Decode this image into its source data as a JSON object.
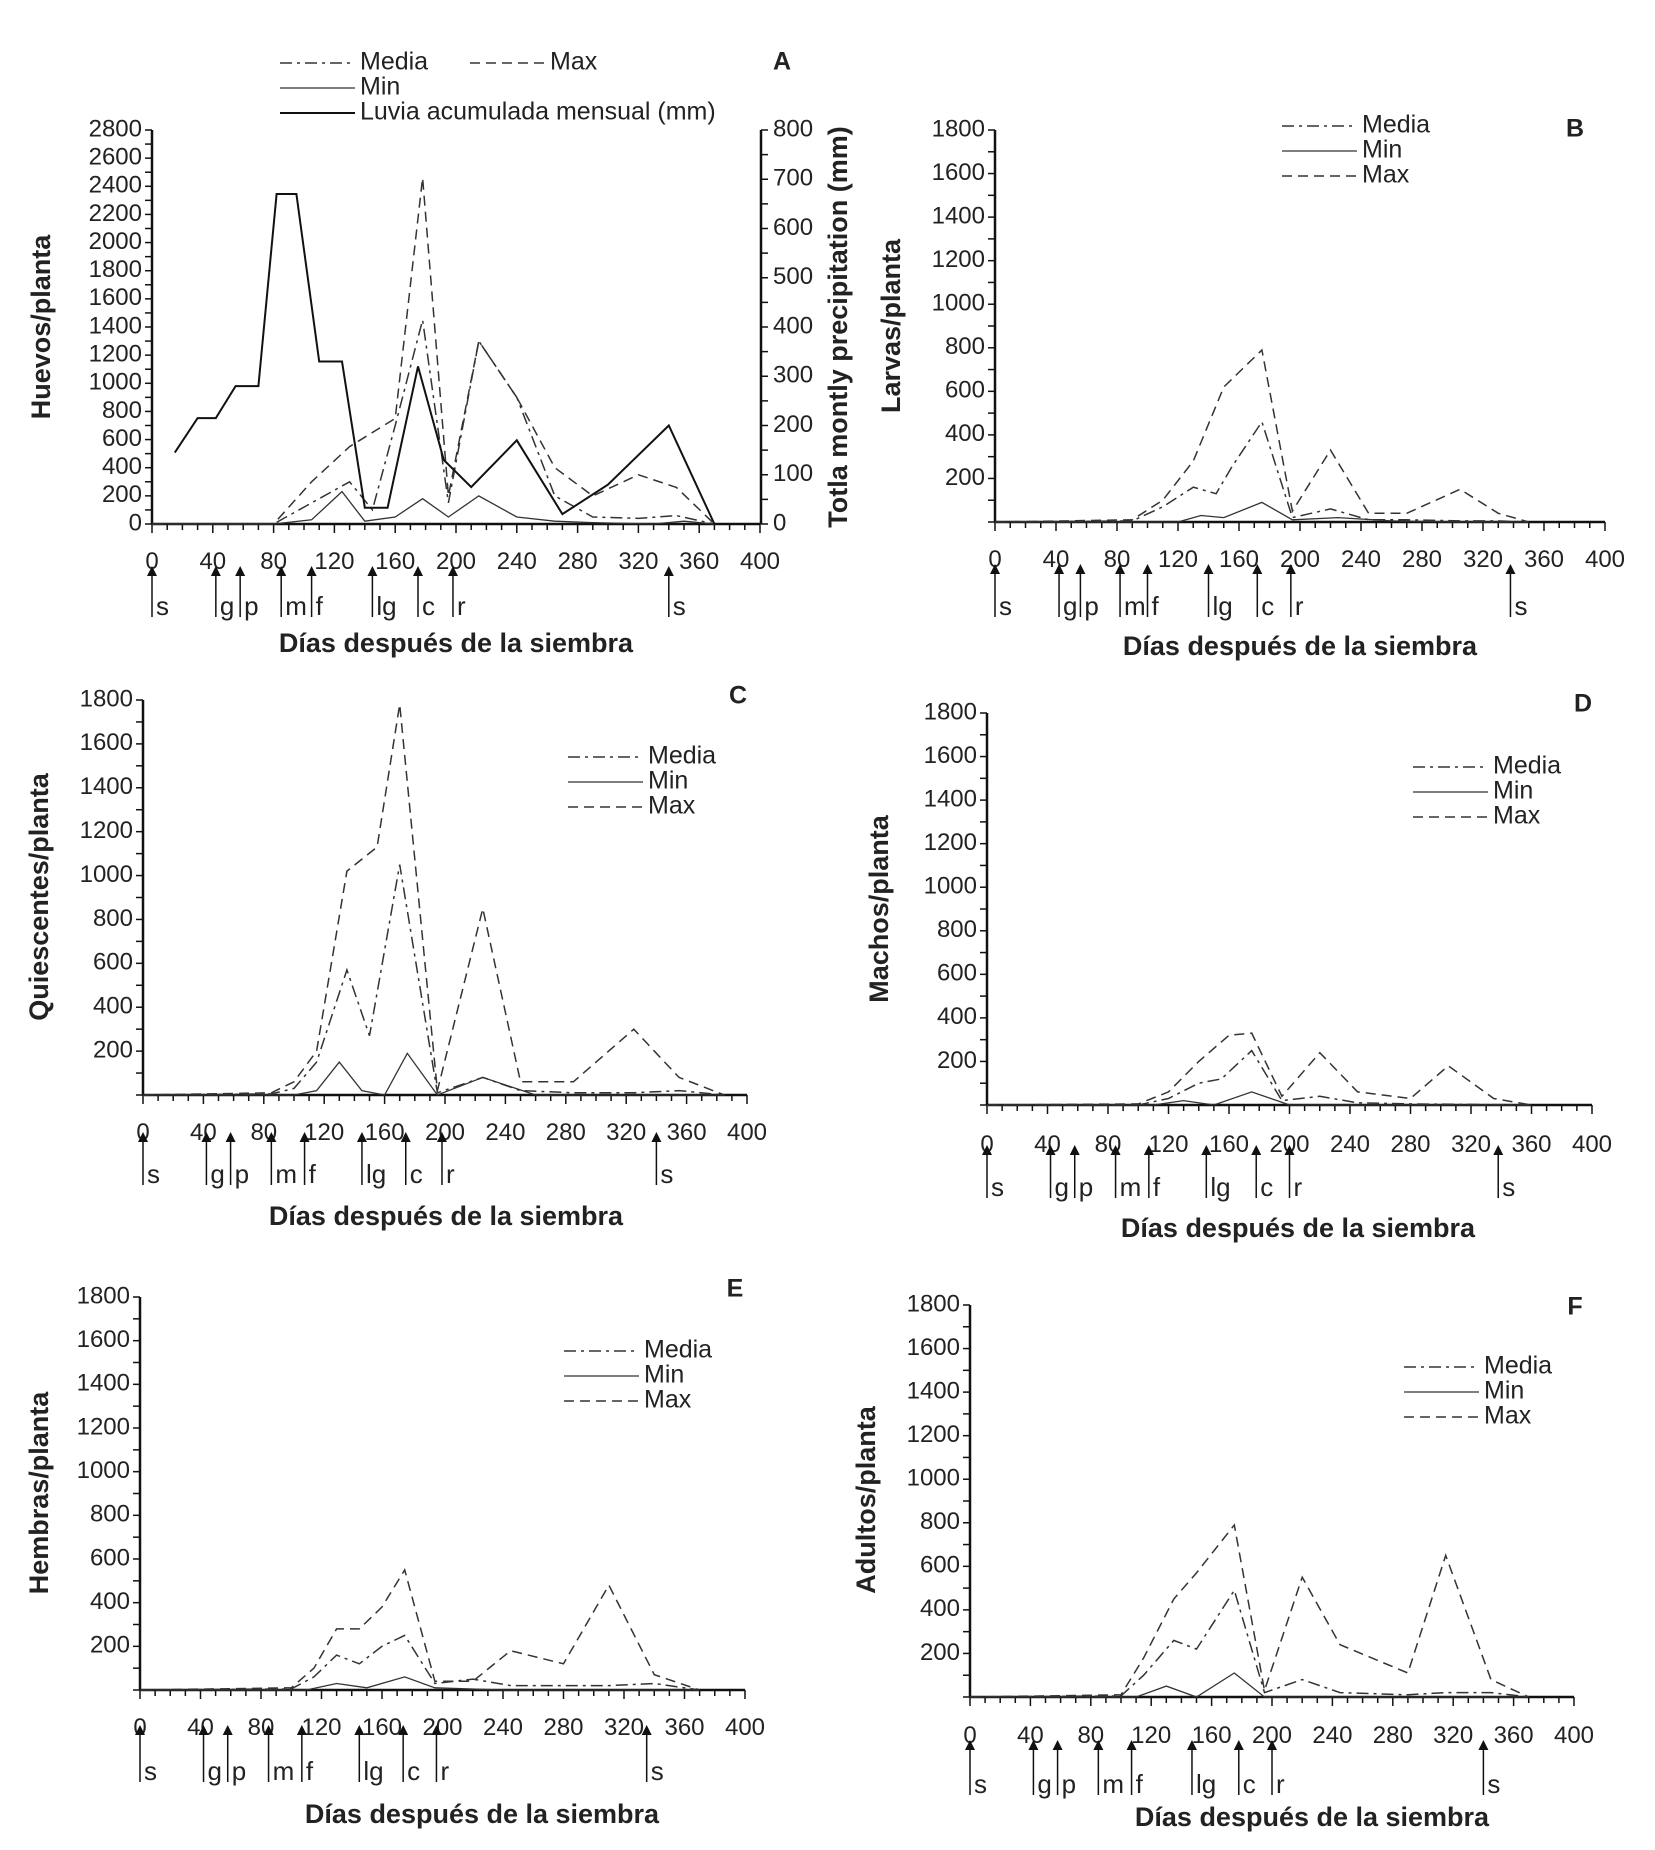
{
  "figure_title": "",
  "chart_data": [
    {
      "panel": "A",
      "type": "line",
      "ylabel": "Huevos/planta",
      "ylabel_right": "Totla montly precipitation  (mm)",
      "xlabel": "Días después de la siembra",
      "xlim": [
        0,
        400
      ],
      "ylim": [
        0,
        2800
      ],
      "y2lim": [
        0,
        800
      ],
      "xticks": [
        0,
        40,
        80,
        120,
        160,
        200,
        240,
        280,
        320,
        360,
        400
      ],
      "yticks": [
        200,
        400,
        600,
        800,
        1000,
        1200,
        1400,
        1600,
        1800,
        2000,
        2200,
        2400,
        2600,
        2800
      ],
      "y2ticks": [
        0,
        100,
        200,
        300,
        400,
        500,
        600,
        700,
        800
      ],
      "show_y_zero": true,
      "legend": [
        {
          "label": "Media",
          "style": "dashdot"
        },
        {
          "label": "Max",
          "style": "dashed"
        },
        {
          "label": "Min",
          "style": "thin"
        },
        {
          "label": "Luvia acumulada mensual (mm)",
          "style": "solid"
        }
      ],
      "series": [
        {
          "name": "Media",
          "style": "dashdot",
          "x": [
            0,
            80,
            105,
            130,
            145,
            160,
            178,
            195,
            215,
            240,
            265,
            290,
            320,
            345,
            370
          ],
          "y": [
            0,
            0,
            150,
            300,
            100,
            700,
            1450,
            150,
            1300,
            900,
            200,
            50,
            40,
            60,
            0
          ]
        },
        {
          "name": "Max",
          "style": "dashed",
          "x": [
            0,
            80,
            105,
            130,
            145,
            160,
            178,
            195,
            215,
            240,
            265,
            290,
            320,
            345,
            370
          ],
          "y": [
            0,
            0,
            300,
            550,
            650,
            750,
            2460,
            200,
            1300,
            900,
            400,
            200,
            350,
            260,
            0
          ]
        },
        {
          "name": "Min",
          "style": "thin",
          "x": [
            0,
            80,
            105,
            125,
            140,
            160,
            178,
            195,
            215,
            240,
            265,
            290,
            330,
            350,
            370
          ],
          "y": [
            0,
            0,
            30,
            230,
            20,
            50,
            180,
            50,
            200,
            50,
            20,
            10,
            0,
            20,
            0
          ]
        },
        {
          "name": "Luvia acumulada mensual (mm)",
          "style": "solid",
          "axis": "right",
          "x": [
            15,
            30,
            42,
            55,
            70,
            82,
            95,
            110,
            125,
            140,
            155,
            175,
            192,
            210,
            240,
            270,
            300,
            340,
            370
          ],
          "y": [
            145,
            215,
            215,
            280,
            280,
            670,
            670,
            330,
            330,
            33,
            33,
            320,
            130,
            75,
            170,
            20,
            80,
            200,
            0
          ]
        }
      ],
      "stages": [
        {
          "x": 0,
          "label": "s"
        },
        {
          "x": 42,
          "label": "g"
        },
        {
          "x": 58,
          "label": "p"
        },
        {
          "x": 85,
          "label": "m"
        },
        {
          "x": 105,
          "label": "f"
        },
        {
          "x": 145,
          "label": "lg"
        },
        {
          "x": 175,
          "label": "c"
        },
        {
          "x": 198,
          "label": "r"
        },
        {
          "x": 340,
          "label": "s"
        }
      ]
    },
    {
      "panel": "B",
      "type": "line",
      "ylabel": "Larvas/planta",
      "xlabel": "Días después de la siembra",
      "xlim": [
        0,
        400
      ],
      "ylim": [
        0,
        1800
      ],
      "xticks": [
        0,
        40,
        80,
        120,
        160,
        200,
        240,
        280,
        320,
        360,
        400
      ],
      "yticks": [
        200,
        400,
        600,
        800,
        1000,
        1200,
        1400,
        1600,
        1800
      ],
      "legend": [
        {
          "label": "Media",
          "style": "dashdot"
        },
        {
          "label": "Min",
          "style": "thin"
        },
        {
          "label": "Max",
          "style": "dashed"
        }
      ],
      "series": [
        {
          "name": "Max",
          "style": "dashed",
          "x": [
            0,
            90,
            110,
            130,
            150,
            175,
            195,
            220,
            245,
            270,
            305,
            330,
            350
          ],
          "y": [
            0,
            10,
            100,
            280,
            620,
            790,
            50,
            330,
            40,
            40,
            150,
            40,
            0
          ]
        },
        {
          "name": "Media",
          "style": "dashdot",
          "x": [
            0,
            90,
            110,
            130,
            145,
            155,
            175,
            195,
            220,
            245,
            270,
            305,
            330,
            350
          ],
          "y": [
            0,
            5,
            70,
            160,
            130,
            250,
            460,
            20,
            60,
            10,
            10,
            5,
            5,
            0
          ]
        },
        {
          "name": "Min",
          "style": "thin",
          "x": [
            0,
            90,
            120,
            135,
            150,
            175,
            195,
            225,
            260,
            305,
            350
          ],
          "y": [
            0,
            0,
            0,
            30,
            20,
            90,
            10,
            20,
            5,
            0,
            0
          ]
        }
      ],
      "stages": [
        {
          "x": 0,
          "label": "s"
        },
        {
          "x": 42,
          "label": "g"
        },
        {
          "x": 56,
          "label": "p"
        },
        {
          "x": 82,
          "label": "m"
        },
        {
          "x": 100,
          "label": "f"
        },
        {
          "x": 140,
          "label": "lg"
        },
        {
          "x": 172,
          "label": "c"
        },
        {
          "x": 194,
          "label": "r"
        },
        {
          "x": 338,
          "label": "s"
        }
      ]
    },
    {
      "panel": "C",
      "type": "line",
      "ylabel": "Quiescentes/planta",
      "xlabel": "Días después de la siembra",
      "xlim": [
        0,
        400
      ],
      "ylim": [
        0,
        1800
      ],
      "xticks": [
        0,
        40,
        80,
        120,
        160,
        200,
        240,
        280,
        320,
        360,
        400
      ],
      "yticks": [
        200,
        400,
        600,
        800,
        1000,
        1200,
        1400,
        1600,
        1800
      ],
      "legend": [
        {
          "label": "Media",
          "style": "dashdot"
        },
        {
          "label": "Min",
          "style": "thin"
        },
        {
          "label": "Max",
          "style": "dashed"
        }
      ],
      "series": [
        {
          "name": "Max",
          "style": "dashed",
          "x": [
            0,
            85,
            100,
            115,
            135,
            155,
            170,
            195,
            225,
            250,
            285,
            325,
            355,
            385
          ],
          "y": [
            0,
            10,
            60,
            200,
            1020,
            1130,
            1780,
            20,
            850,
            60,
            60,
            300,
            80,
            0
          ]
        },
        {
          "name": "Media",
          "style": "dashdot",
          "x": [
            0,
            85,
            100,
            115,
            135,
            150,
            170,
            195,
            225,
            250,
            285,
            325,
            355,
            385
          ],
          "y": [
            0,
            5,
            30,
            150,
            570,
            270,
            1050,
            10,
            80,
            20,
            10,
            10,
            20,
            0
          ]
        },
        {
          "name": "Min",
          "style": "thin",
          "x": [
            0,
            100,
            115,
            130,
            145,
            160,
            175,
            195,
            225,
            260,
            325,
            385
          ],
          "y": [
            0,
            0,
            20,
            150,
            20,
            0,
            190,
            0,
            80,
            0,
            0,
            0
          ]
        }
      ],
      "stages": [
        {
          "x": 0,
          "label": "s"
        },
        {
          "x": 42,
          "label": "g"
        },
        {
          "x": 58,
          "label": "p"
        },
        {
          "x": 85,
          "label": "m"
        },
        {
          "x": 107,
          "label": "f"
        },
        {
          "x": 145,
          "label": "lg"
        },
        {
          "x": 174,
          "label": "c"
        },
        {
          "x": 198,
          "label": "r"
        },
        {
          "x": 340,
          "label": "s"
        }
      ]
    },
    {
      "panel": "D",
      "type": "line",
      "ylabel": "Machos/planta",
      "xlabel": "Días después de la siembra",
      "xlim": [
        0,
        400
      ],
      "ylim": [
        0,
        1800
      ],
      "xticks": [
        0,
        40,
        80,
        120,
        160,
        200,
        240,
        280,
        320,
        360,
        400
      ],
      "yticks": [
        200,
        400,
        600,
        800,
        1000,
        1200,
        1400,
        1600,
        1800
      ],
      "legend": [
        {
          "label": "Media",
          "style": "dashdot"
        },
        {
          "label": "Min",
          "style": "thin"
        },
        {
          "label": "Max",
          "style": "dashed"
        }
      ],
      "series": [
        {
          "name": "Max",
          "style": "dashed",
          "x": [
            0,
            100,
            120,
            140,
            160,
            175,
            195,
            220,
            245,
            280,
            305,
            335,
            360
          ],
          "y": [
            0,
            5,
            60,
            200,
            320,
            330,
            40,
            240,
            60,
            30,
            180,
            30,
            0
          ]
        },
        {
          "name": "Media",
          "style": "dashdot",
          "x": [
            0,
            100,
            120,
            140,
            155,
            175,
            195,
            220,
            245,
            280,
            360
          ],
          "y": [
            0,
            0,
            30,
            100,
            120,
            250,
            20,
            40,
            10,
            5,
            0
          ]
        },
        {
          "name": "Min",
          "style": "thin",
          "x": [
            0,
            110,
            130,
            150,
            175,
            200,
            240,
            360
          ],
          "y": [
            0,
            0,
            20,
            0,
            60,
            0,
            0,
            0
          ]
        }
      ],
      "stages": [
        {
          "x": 0,
          "label": "s"
        },
        {
          "x": 42,
          "label": "g"
        },
        {
          "x": 58,
          "label": "p"
        },
        {
          "x": 85,
          "label": "m"
        },
        {
          "x": 107,
          "label": "f"
        },
        {
          "x": 145,
          "label": "lg"
        },
        {
          "x": 178,
          "label": "c"
        },
        {
          "x": 200,
          "label": "r"
        },
        {
          "x": 338,
          "label": "s"
        }
      ]
    },
    {
      "panel": "E",
      "type": "line",
      "ylabel": "Hembras/planta",
      "xlabel": "Días después de la siembra",
      "xlim": [
        0,
        400
      ],
      "ylim": [
        0,
        1800
      ],
      "xticks": [
        0,
        40,
        80,
        120,
        160,
        200,
        240,
        280,
        320,
        360,
        400
      ],
      "yticks": [
        200,
        400,
        600,
        800,
        1000,
        1200,
        1400,
        1600,
        1800
      ],
      "legend": [
        {
          "label": "Media",
          "style": "dashdot"
        },
        {
          "label": "Min",
          "style": "thin"
        },
        {
          "label": "Max",
          "style": "dashed"
        }
      ],
      "series": [
        {
          "name": "Max",
          "style": "dashed",
          "x": [
            0,
            100,
            115,
            130,
            145,
            160,
            175,
            195,
            220,
            245,
            280,
            310,
            340,
            370
          ],
          "y": [
            0,
            10,
            100,
            280,
            280,
            380,
            550,
            40,
            40,
            180,
            120,
            480,
            70,
            0
          ]
        },
        {
          "name": "Media",
          "style": "dashdot",
          "x": [
            0,
            100,
            115,
            130,
            145,
            160,
            175,
            195,
            220,
            245,
            280,
            310,
            340,
            370
          ],
          "y": [
            0,
            5,
            60,
            160,
            120,
            200,
            250,
            30,
            50,
            20,
            20,
            20,
            30,
            0
          ]
        },
        {
          "name": "Min",
          "style": "thin",
          "x": [
            0,
            110,
            130,
            150,
            175,
            195,
            240,
            310,
            370
          ],
          "y": [
            0,
            0,
            30,
            10,
            60,
            10,
            0,
            0,
            0
          ]
        }
      ],
      "stages": [
        {
          "x": 0,
          "label": "s"
        },
        {
          "x": 42,
          "label": "g"
        },
        {
          "x": 58,
          "label": "p"
        },
        {
          "x": 85,
          "label": "m"
        },
        {
          "x": 107,
          "label": "f"
        },
        {
          "x": 145,
          "label": "lg"
        },
        {
          "x": 174,
          "label": "c"
        },
        {
          "x": 196,
          "label": "r"
        },
        {
          "x": 335,
          "label": "s"
        }
      ]
    },
    {
      "panel": "F",
      "type": "line",
      "ylabel": "Adultos/planta",
      "xlabel": "Días después de la siembra",
      "xlim": [
        0,
        400
      ],
      "ylim": [
        0,
        1800
      ],
      "xticks": [
        0,
        40,
        80,
        120,
        160,
        200,
        240,
        280,
        320,
        360,
        400
      ],
      "yticks": [
        200,
        400,
        600,
        800,
        1000,
        1200,
        1400,
        1600,
        1800
      ],
      "legend": [
        {
          "label": "Media",
          "style": "dashdot"
        },
        {
          "label": "Min",
          "style": "thin"
        },
        {
          "label": "Max",
          "style": "dashed"
        }
      ],
      "series": [
        {
          "name": "Max",
          "style": "dashed",
          "x": [
            0,
            100,
            115,
            135,
            150,
            175,
            195,
            220,
            245,
            290,
            315,
            345,
            370
          ],
          "y": [
            0,
            10,
            180,
            450,
            570,
            790,
            30,
            550,
            240,
            110,
            650,
            80,
            0
          ]
        },
        {
          "name": "Media",
          "style": "dashdot",
          "x": [
            0,
            100,
            115,
            135,
            150,
            175,
            195,
            220,
            245,
            290,
            315,
            345,
            370
          ],
          "y": [
            0,
            5,
            100,
            260,
            220,
            490,
            20,
            80,
            20,
            10,
            20,
            20,
            0
          ]
        },
        {
          "name": "Min",
          "style": "thin",
          "x": [
            0,
            110,
            130,
            150,
            175,
            195,
            240,
            370
          ],
          "y": [
            0,
            0,
            50,
            0,
            110,
            0,
            0,
            0
          ]
        }
      ],
      "stages": [
        {
          "x": 0,
          "label": "s"
        },
        {
          "x": 42,
          "label": "g"
        },
        {
          "x": 58,
          "label": "p"
        },
        {
          "x": 85,
          "label": "m"
        },
        {
          "x": 107,
          "label": "f"
        },
        {
          "x": 147,
          "label": "lg"
        },
        {
          "x": 178,
          "label": "c"
        },
        {
          "x": 200,
          "label": "r"
        },
        {
          "x": 340,
          "label": "s"
        }
      ]
    }
  ]
}
